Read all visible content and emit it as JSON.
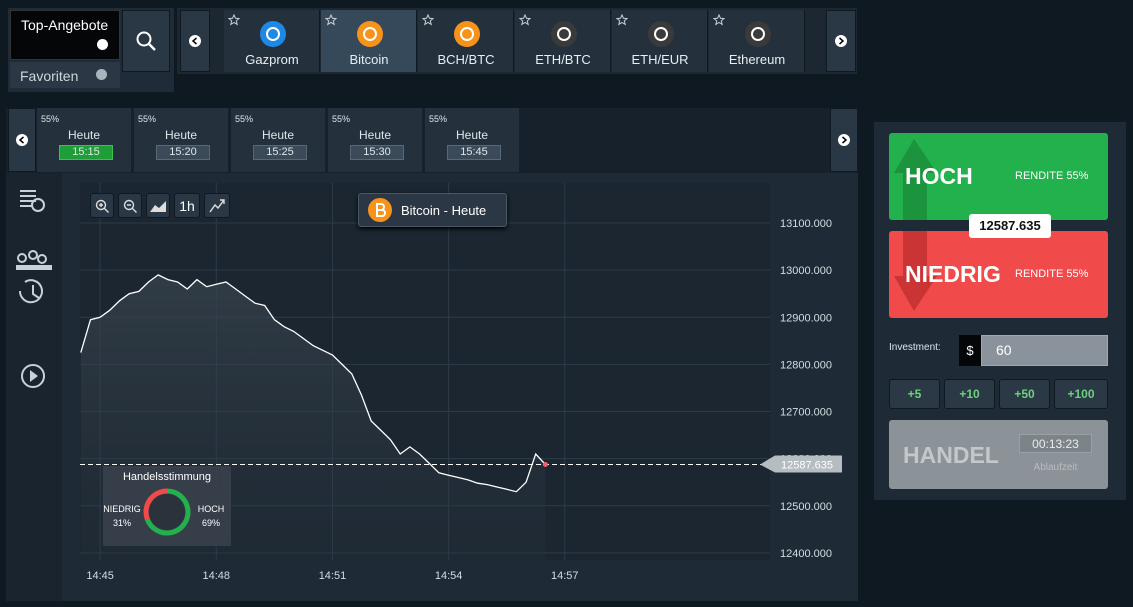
{
  "header": {
    "top_offers": "Top-Angebote",
    "favorites": "Favoriten"
  },
  "assets": [
    "Gazprom",
    "Bitcoin",
    "BCH/BTC",
    "ETH/BTC",
    "ETH/EUR",
    "Ethereum"
  ],
  "expiries": [
    {
      "payout": "55%",
      "day": "Heute",
      "time": "15:15"
    },
    {
      "payout": "55%",
      "day": "Heute",
      "time": "15:20"
    },
    {
      "payout": "55%",
      "day": "Heute",
      "time": "15:25"
    },
    {
      "payout": "55%",
      "day": "Heute",
      "time": "15:30"
    },
    {
      "payout": "55%",
      "day": "Heute",
      "time": "15:45"
    }
  ],
  "toolbar": {
    "interval": "1h"
  },
  "chart_data": {
    "type": "line",
    "title": "Bitcoin - Heute",
    "color": "#ffffff",
    "x": [
      884.5,
      884.75,
      885,
      885.25,
      885.5,
      885.75,
      886,
      886.25,
      886.5,
      886.75,
      887,
      887.25,
      887.5,
      887.75,
      888,
      888.25,
      888.5,
      888.75,
      889,
      889.25,
      889.5,
      889.75,
      890,
      890.25,
      890.5,
      890.75,
      891,
      891.25,
      891.5,
      891.75,
      892,
      892.25,
      892.5,
      892.75,
      893,
      893.25,
      893.5,
      893.75,
      894,
      894.25,
      894.5,
      894.75,
      895,
      895.25,
      895.5,
      895.75,
      896,
      896.25,
      896.5
    ],
    "values": [
      12825,
      12895,
      12900,
      12915,
      12935,
      12950,
      12955,
      12975,
      12990,
      12980,
      12975,
      12960,
      12980,
      12965,
      12970,
      12975,
      12960,
      12945,
      12930,
      12925,
      12895,
      12880,
      12870,
      12855,
      12840,
      12830,
      12820,
      12800,
      12780,
      12735,
      12680,
      12660,
      12640,
      12610,
      12625,
      12610,
      12590,
      12570,
      12565,
      12560,
      12555,
      12548,
      12545,
      12540,
      12535,
      12530,
      12550,
      12610,
      12587.635
    ],
    "xlim": [
      884.48,
      902.3
    ],
    "ylim": [
      12385,
      13185
    ],
    "xticks": [
      {
        "value": 885,
        "label": "14:45"
      },
      {
        "value": 888,
        "label": "14:48"
      },
      {
        "value": 891,
        "label": "14:51"
      },
      {
        "value": 894,
        "label": "14:54"
      },
      {
        "value": 897,
        "label": "14:57"
      }
    ],
    "yticks": [
      {
        "value": 12400,
        "label": "12400.000"
      },
      {
        "value": 12500,
        "label": "12500.000"
      },
      {
        "value": 12600,
        "label": "12600.000"
      },
      {
        "value": 12700,
        "label": "12700.000"
      },
      {
        "value": 12800,
        "label": "12800.000"
      },
      {
        "value": 12900,
        "label": "12900.000"
      },
      {
        "value": 13000,
        "label": "13000.000"
      },
      {
        "value": 13100,
        "label": "13100.000"
      }
    ],
    "grid": true,
    "current": {
      "value": 12587.635,
      "label": "12587.635"
    }
  },
  "sentiment": {
    "title": "Handelsstimmung",
    "low_name": "NIEDRIG",
    "low": 31,
    "low_label": "31%",
    "high_name": "HOCH",
    "high": 69,
    "high_label": "69%"
  },
  "trade": {
    "up": "HOCH",
    "up_payout": "RENDITE 55%",
    "down": "NIEDRIG",
    "down_payout": "RENDITE 55%",
    "investment_label": "Investment:",
    "currency": "$",
    "investment": "60",
    "increments": [
      "+5",
      "+10",
      "+50",
      "+100"
    ],
    "submit": "HANDEL",
    "timer": "00:13:23",
    "timer_label": "Ablaufzeit"
  }
}
